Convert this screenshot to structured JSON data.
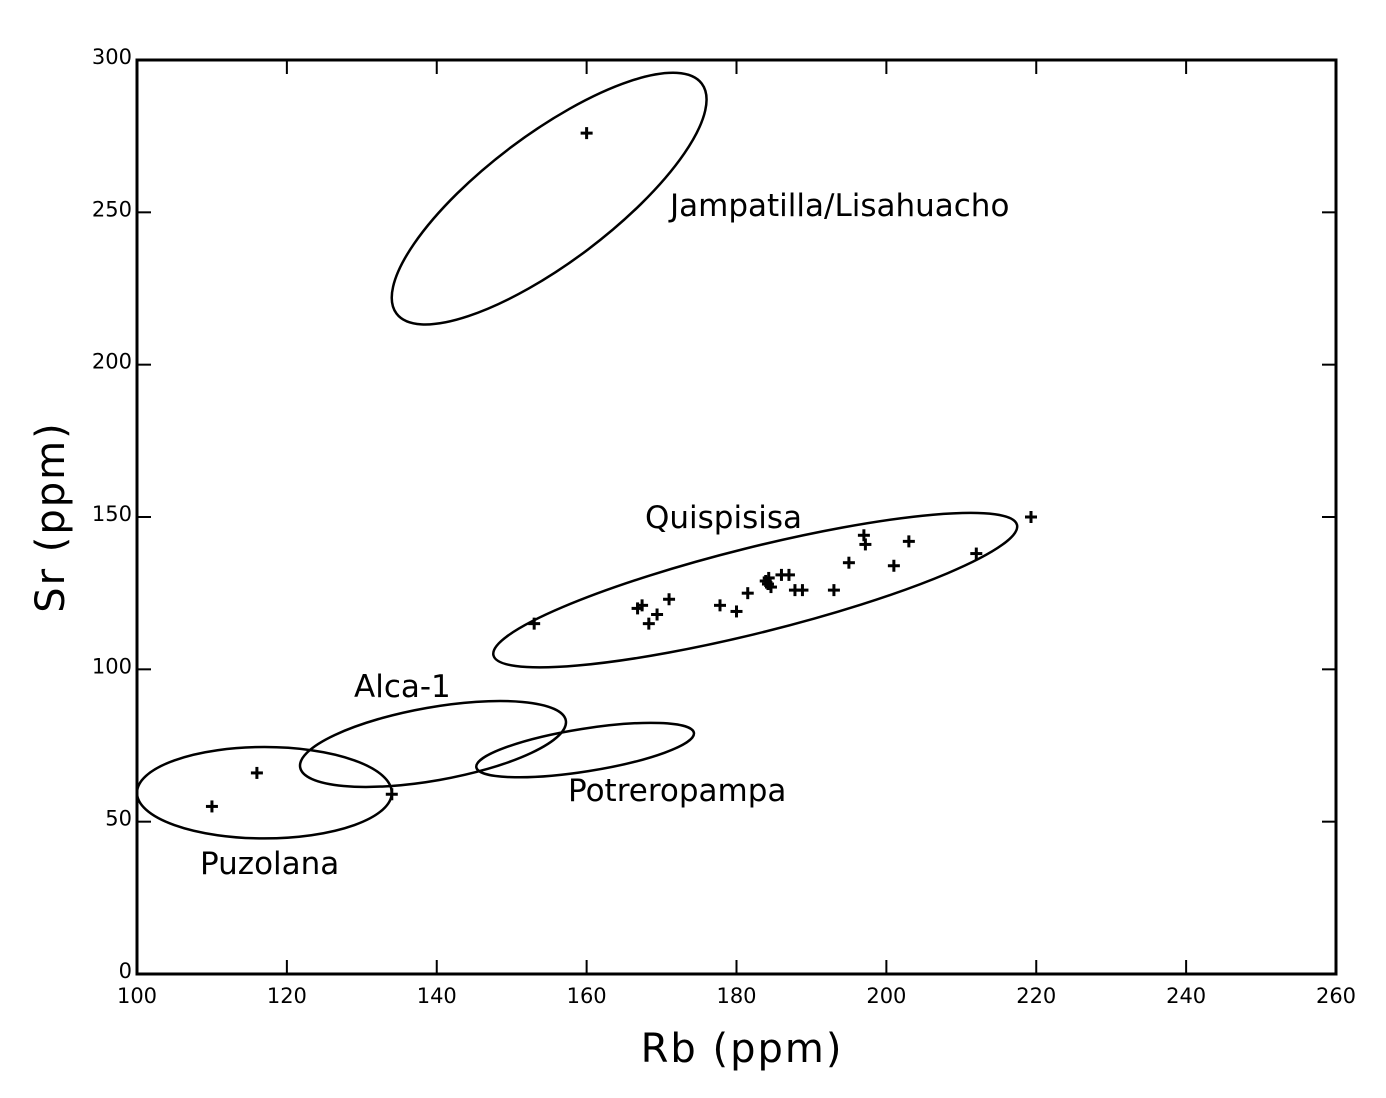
{
  "chart_data": {
    "type": "scatter",
    "title": "",
    "xlabel": "Rb (ppm)",
    "ylabel": "Sr (ppm)",
    "xlim": [
      100,
      260
    ],
    "ylim": [
      0,
      300
    ],
    "xticks": [
      100,
      120,
      140,
      160,
      180,
      200,
      220,
      240,
      260
    ],
    "yticks": [
      0,
      50,
      100,
      150,
      200,
      250,
      300
    ],
    "grid": false,
    "marker": "plus",
    "points": [
      {
        "x": 160,
        "y": 276
      },
      {
        "x": 153,
        "y": 115
      },
      {
        "x": 166.8,
        "y": 120
      },
      {
        "x": 167.4,
        "y": 121
      },
      {
        "x": 168.3,
        "y": 115
      },
      {
        "x": 169.4,
        "y": 118
      },
      {
        "x": 171,
        "y": 123
      },
      {
        "x": 177.8,
        "y": 121
      },
      {
        "x": 180,
        "y": 119
      },
      {
        "x": 181.5,
        "y": 125
      },
      {
        "x": 183.9,
        "y": 129
      },
      {
        "x": 184.2,
        "y": 128
      },
      {
        "x": 184.6,
        "y": 127
      },
      {
        "x": 184.3,
        "y": 130
      },
      {
        "x": 186,
        "y": 131
      },
      {
        "x": 187,
        "y": 131
      },
      {
        "x": 187.8,
        "y": 126
      },
      {
        "x": 188.8,
        "y": 126
      },
      {
        "x": 193,
        "y": 126
      },
      {
        "x": 195,
        "y": 135
      },
      {
        "x": 197,
        "y": 144
      },
      {
        "x": 197.2,
        "y": 141
      },
      {
        "x": 201,
        "y": 134
      },
      {
        "x": 203,
        "y": 142
      },
      {
        "x": 212,
        "y": 138
      },
      {
        "x": 219.3,
        "y": 150
      },
      {
        "x": 110,
        "y": 55
      },
      {
        "x": 116,
        "y": 66
      },
      {
        "x": 134,
        "y": 59
      }
    ],
    "groups": [
      {
        "label": "Jampatilla/Lisahuacho",
        "cx": 155,
        "cy": 254.5,
        "rx": 25.5,
        "ry": 21,
        "rotate": -37
      },
      {
        "label": "Quispisisa",
        "cx": 182.5,
        "cy": 126,
        "rx": 36,
        "ry": 14,
        "rotate": -14
      },
      {
        "label": "Alca-1",
        "cx": 139.5,
        "cy": 75.5,
        "rx": 18,
        "ry": 12,
        "rotate": -10
      },
      {
        "label": "Potreropampa",
        "cx": 159.8,
        "cy": 73.5,
        "rx": 14.7,
        "ry": 7,
        "rotate": -9
      },
      {
        "label": "Puzolana",
        "cx": 117,
        "cy": 59.5,
        "rx": 17,
        "ry": 15,
        "rotate": 0
      }
    ]
  }
}
